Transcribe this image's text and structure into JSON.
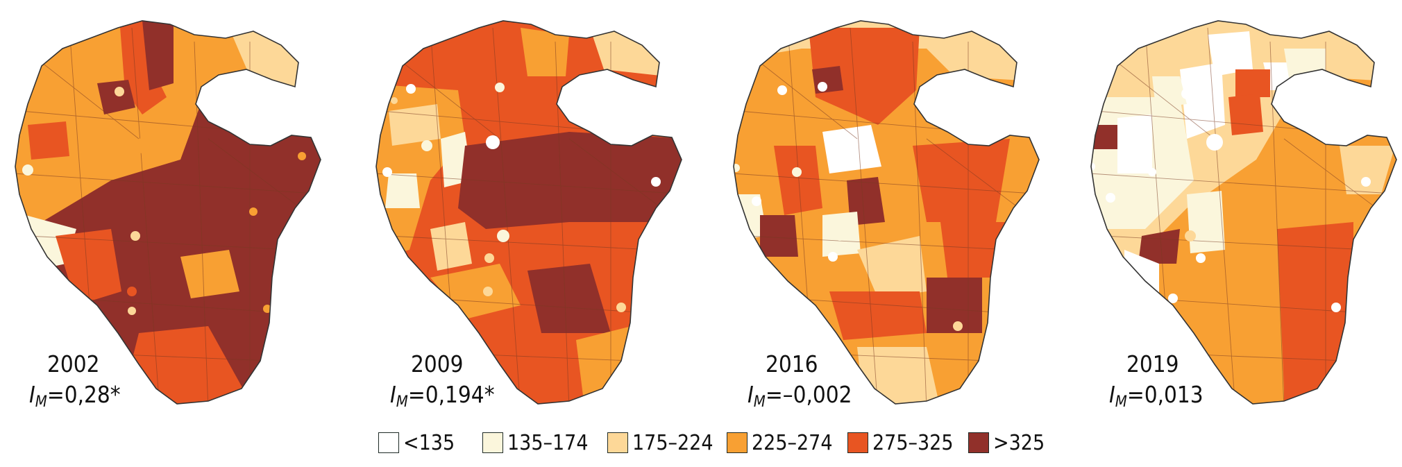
{
  "legend": {
    "classes": [
      {
        "label": "<135",
        "color": "#ffffff"
      },
      {
        "label": "135–174",
        "color": "#fbf6dc"
      },
      {
        "label": "175–224",
        "color": "#fdd898"
      },
      {
        "label": "225–274",
        "color": "#f8a033"
      },
      {
        "label": "275–325",
        "color": "#e85522"
      },
      {
        "label": ">325",
        "color": "#91302a"
      }
    ]
  },
  "maps": [
    {
      "year": "2002",
      "moran_symbol": "I",
      "moran_sub": "M",
      "moran_value": "=0,28*",
      "dominant_class": ">325"
    },
    {
      "year": "2009",
      "moran_symbol": "I",
      "moran_sub": "M",
      "moran_value": "=0,194*",
      "dominant_class": "275–325"
    },
    {
      "year": "2016",
      "moran_symbol": "I",
      "moran_sub": "M",
      "moran_value": "=–0,002",
      "dominant_class": "225–274"
    },
    {
      "year": "2019",
      "moran_symbol": "I",
      "moran_sub": "M",
      "moran_value": "=0,013",
      "dominant_class": "175–224"
    }
  ]
}
